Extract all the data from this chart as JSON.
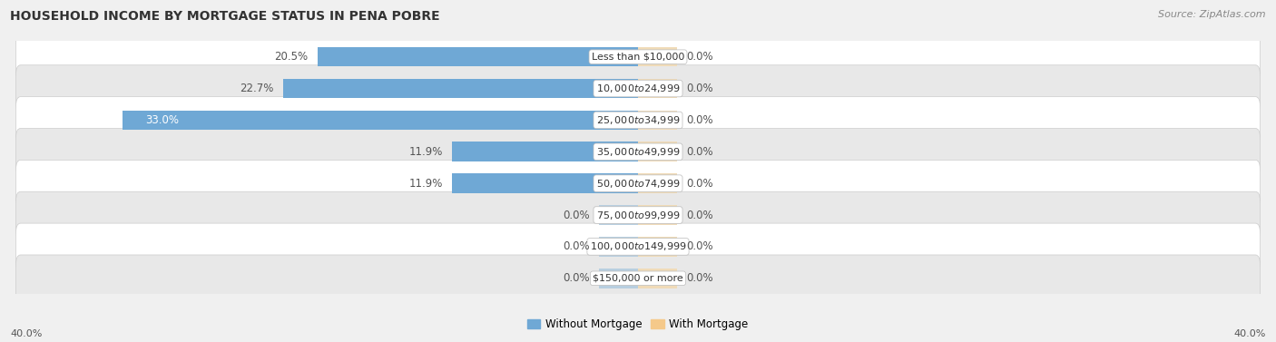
{
  "title": "HOUSEHOLD INCOME BY MORTGAGE STATUS IN PENA POBRE",
  "source": "Source: ZipAtlas.com",
  "categories": [
    "Less than $10,000",
    "$10,000 to $24,999",
    "$25,000 to $34,999",
    "$35,000 to $49,999",
    "$50,000 to $74,999",
    "$75,000 to $99,999",
    "$100,000 to $149,999",
    "$150,000 or more"
  ],
  "without_mortgage": [
    20.5,
    22.7,
    33.0,
    11.9,
    11.9,
    0.0,
    0.0,
    0.0
  ],
  "with_mortgage": [
    0.0,
    0.0,
    0.0,
    0.0,
    0.0,
    0.0,
    0.0,
    0.0
  ],
  "without_mortgage_color": "#6fa8d5",
  "without_mortgage_color_zero": "#b8cfe0",
  "with_mortgage_color": "#f5c98a",
  "with_mortgage_color_zero": "#f0dbb8",
  "without_mortgage_label": "Without Mortgage",
  "with_mortgage_label": "With Mortgage",
  "axis_limit": 40.0,
  "axis_label_left": "40.0%",
  "axis_label_right": "40.0%",
  "background_color": "#f0f0f0",
  "row_color_even": "#ffffff",
  "row_color_odd": "#e8e8e8",
  "title_fontsize": 10,
  "source_fontsize": 8,
  "bar_label_fontsize": 8.5,
  "category_fontsize": 8,
  "legend_fontsize": 8.5
}
